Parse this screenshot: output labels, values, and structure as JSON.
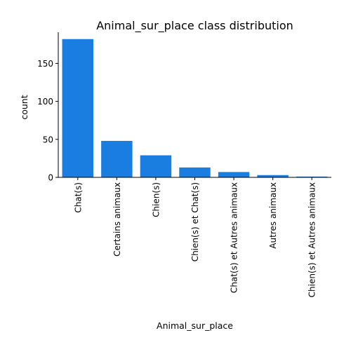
{
  "chart_data": {
    "type": "bar",
    "title": "Animal_sur_place class distribution",
    "xlabel": "Animal_sur_place",
    "ylabel": "count",
    "categories": [
      "Chat(s)",
      "Certains animaux",
      "Chien(s)",
      "Chien(s) et Chat(s)",
      "Chat(s) et Autres animaux",
      "Autres animaux",
      "Chien(s) et Autres animaux"
    ],
    "values": [
      182,
      48,
      29,
      13,
      7,
      3,
      1
    ],
    "ylim": [
      0,
      191
    ],
    "yticks": [
      0,
      50,
      100,
      150
    ],
    "bar_color": "#1a7de0",
    "grid": false,
    "legend": "none"
  }
}
